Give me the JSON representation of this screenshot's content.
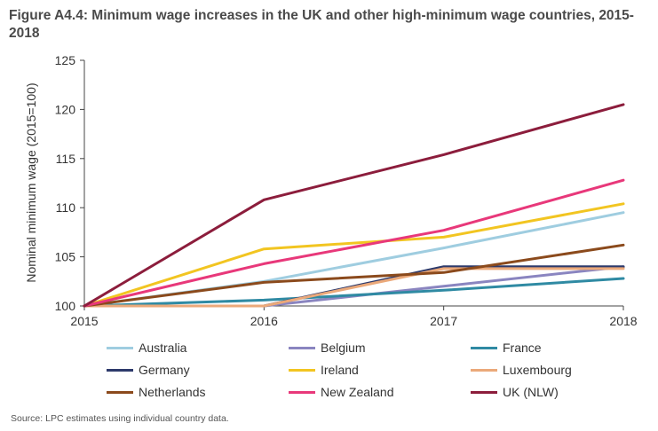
{
  "title": "Figure A4.4: Minimum wage increases in the UK and other high-minimum wage countries, 2015-2018",
  "source": "Source: LPC estimates using individual country data.",
  "chart_data": {
    "type": "line",
    "title": "Figure A4.4: Minimum wage increases in the UK and other high-minimum wage countries, 2015-2018",
    "xlabel": "",
    "ylabel": "Nominal minimum wage (2015=100)",
    "x": [
      2015,
      2016,
      2017,
      2018
    ],
    "x_tick_labels": [
      "2015",
      "2016",
      "2017",
      "2018"
    ],
    "ylim": [
      100,
      125
    ],
    "y_ticks": [
      100,
      105,
      110,
      115,
      120,
      125
    ],
    "y_tick_labels": [
      "100",
      "105",
      "110",
      "115",
      "120",
      "125"
    ],
    "grid": false,
    "legend_position": "bottom",
    "series": [
      {
        "name": "Australia",
        "color": "#9fcde0",
        "values": [
          100,
          102.5,
          105.9,
          109.5
        ]
      },
      {
        "name": "Belgium",
        "color": "#8a85c0",
        "values": [
          100,
          100.0,
          102.0,
          104.0
        ]
      },
      {
        "name": "France",
        "color": "#2f8aa3",
        "values": [
          100,
          100.6,
          101.6,
          102.8
        ]
      },
      {
        "name": "Germany",
        "color": "#2d3a6b",
        "values": [
          100,
          100.0,
          104.0,
          104.0
        ]
      },
      {
        "name": "Ireland",
        "color": "#f2c521",
        "values": [
          100,
          105.8,
          107.0,
          110.4
        ]
      },
      {
        "name": "Luxembourg",
        "color": "#eba97a",
        "values": [
          100,
          100.0,
          103.8,
          103.8
        ]
      },
      {
        "name": "Netherlands",
        "color": "#8b4a1c",
        "values": [
          100,
          102.4,
          103.4,
          106.2
        ]
      },
      {
        "name": "New Zealand",
        "color": "#e8387a",
        "values": [
          100,
          104.3,
          107.7,
          112.8
        ]
      },
      {
        "name": "UK (NLW)",
        "color": "#8c1d3c",
        "values": [
          100,
          110.8,
          115.4,
          120.5
        ]
      }
    ]
  }
}
